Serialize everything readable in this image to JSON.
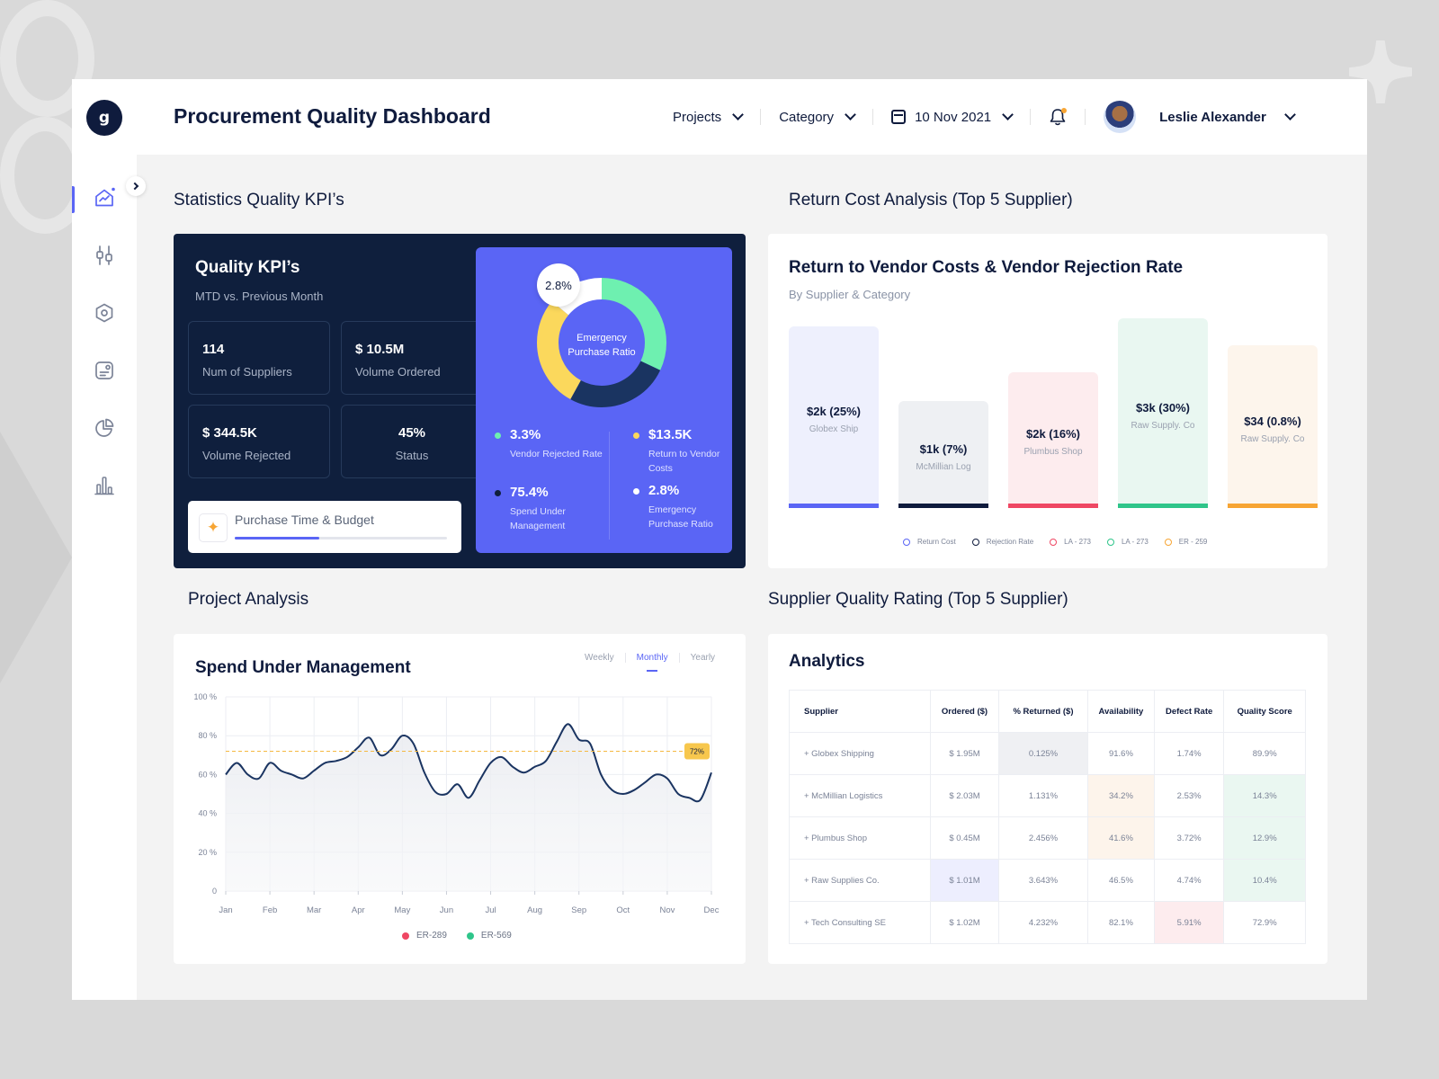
{
  "app": {
    "logo_letter": "g",
    "title": "Procurement Quality Dashboard"
  },
  "header": {
    "projects_label": "Projects",
    "category_label": "Category",
    "date_label": "10 Nov 2021",
    "user_name": "Leslie Alexander"
  },
  "sidebar": {
    "items": [
      {
        "icon": "dashboard-icon",
        "active": true
      },
      {
        "icon": "sliders-icon",
        "active": false
      },
      {
        "icon": "hexagon-settings-icon",
        "active": false
      },
      {
        "icon": "document-icon",
        "active": false
      },
      {
        "icon": "pie-chart-icon",
        "active": false
      },
      {
        "icon": "bar-chart-icon",
        "active": false
      }
    ]
  },
  "sections": {
    "stats_title": "Statistics Quality KPI’s",
    "return_cost_title": "Return Cost Analysis (Top 5 Supplier)",
    "project_title": "Project Analysis",
    "supplier_title": "Supplier Quality Rating (Top 5 Supplier)"
  },
  "kpi": {
    "title": "Quality KPI’s",
    "subtitle": "MTD vs. Previous Month",
    "boxes": [
      {
        "value": "114",
        "label": "Num of Suppliers"
      },
      {
        "value": "$ 10.5M",
        "label": "Volume Ordered"
      },
      {
        "value": "$ 344.5K",
        "label": "Volume Rejected"
      },
      {
        "value": "45%",
        "label": "Status"
      }
    ],
    "purchase_label": "Purchase Time & Budget",
    "purchase_progress": 0.4
  },
  "donut": {
    "badge": "2.8%",
    "center_label": "Emergency Purchase Ratio",
    "segments": [
      {
        "value": 32,
        "color": "#6ef0b0"
      },
      {
        "value": 26,
        "color": "#1a3461"
      },
      {
        "value": 28,
        "color": "#fbd85c"
      },
      {
        "value": 14,
        "color": "#ffffff"
      }
    ],
    "stats": [
      {
        "value": "3.3%",
        "label": "Vendor Rejected Rate",
        "color": "#6ef0b0"
      },
      {
        "value": "$13.5K",
        "label": "Return to Vendor Costs",
        "color": "#fbd85c"
      },
      {
        "value": "75.4%",
        "label": "Spend Under Management",
        "color": "#0f1f3d"
      },
      {
        "value": "2.8%",
        "label": "Emergency Purchase Ratio",
        "color": "#ffffff"
      }
    ]
  },
  "return_cost": {
    "title": "Return to Vendor Costs & Vendor Rejection Rate",
    "subtitle": "By Supplier & Category",
    "legend": [
      {
        "label": "Return Cost",
        "color": "#5a65f5"
      },
      {
        "label": "Rejection Rate",
        "color": "#0f1b3d"
      },
      {
        "label": "LA - 273",
        "color": "#ef4763"
      },
      {
        "label": "LA - 273",
        "color": "#2fc58a"
      },
      {
        "label": "ER - 259",
        "color": "#f7a534"
      }
    ]
  },
  "project": {
    "chart_title": "Spend Under Management",
    "tabs": [
      {
        "label": "Weekly",
        "active": false
      },
      {
        "label": "Monthly",
        "active": true
      },
      {
        "label": "Yearly",
        "active": false
      }
    ],
    "legend": [
      {
        "label": "ER-289",
        "color": "#ef4763"
      },
      {
        "label": "ER-569",
        "color": "#2fc58a"
      }
    ]
  },
  "analytics": {
    "title": "Analytics",
    "columns": [
      "Supplier",
      "Ordered ($)",
      "% Returned ($)",
      "Availability",
      "Defect Rate",
      "Quality Score"
    ],
    "rows": [
      {
        "cells": [
          "+ Globex Shipping",
          "$ 1.95M",
          "0.125%",
          "91.6%",
          "1.74%",
          "89.9%"
        ],
        "hl": [
          "",
          "",
          "c-gray",
          "",
          "",
          ""
        ]
      },
      {
        "cells": [
          "+ McMillian Logistics",
          "$ 2.03M",
          "1.131%",
          "34.2%",
          "2.53%",
          "14.3%"
        ],
        "hl": [
          "",
          "",
          "",
          "c-peach",
          "",
          "c-mint"
        ]
      },
      {
        "cells": [
          "+ Plumbus Shop",
          "$ 0.45M",
          "2.456%",
          "41.6%",
          "3.72%",
          "12.9%"
        ],
        "hl": [
          "",
          "",
          "",
          "c-peach",
          "",
          "c-mint"
        ]
      },
      {
        "cells": [
          "+ Raw Supplies Co.",
          "$ 1.01M",
          "3.643%",
          "46.5%",
          "4.74%",
          "10.4%"
        ],
        "hl": [
          "",
          "c-lav",
          "",
          "",
          "",
          "c-mint"
        ]
      },
      {
        "cells": [
          "+ Tech Consulting SE",
          "$ 1.02M",
          "4.232%",
          "82.1%",
          "5.91%",
          "72.9%"
        ],
        "hl": [
          "",
          "",
          "",
          "",
          "c-pink",
          ""
        ]
      }
    ]
  },
  "chart_data": [
    {
      "type": "bar",
      "title": "Return to Vendor Costs & Vendor Rejection Rate",
      "subtitle": "By Supplier & Category",
      "categories": [
        "Globex Ship",
        "McMillian Log",
        "Plumbus Shop",
        "Raw Supply. Co",
        "Raw Supply. Co"
      ],
      "value_labels": [
        "$2k (25%)",
        "$1k (7%)",
        "$2k (16%)",
        "$3k (30%)",
        "$34 (0.8%)"
      ],
      "values": [
        25,
        7,
        16,
        30,
        0.8
      ],
      "bar_levels": [
        0.75,
        0.44,
        0.56,
        0.78,
        0.67
      ],
      "colors": [
        {
          "fill": "#eef0fd",
          "accent": "#5a65f5"
        },
        {
          "fill": "#eef0f3",
          "accent": "#0f1b3d"
        },
        {
          "fill": "#fdecee",
          "accent": "#ef4763"
        },
        {
          "fill": "#e9f7f1",
          "accent": "#2fc58a"
        },
        {
          "fill": "#fdf5ec",
          "accent": "#f7a534"
        }
      ]
    },
    {
      "type": "line",
      "title": "Spend Under Management",
      "categories": [
        "Jan",
        "Feb",
        "Mar",
        "Apr",
        "May",
        "Jun",
        "Jul",
        "Aug",
        "Sep",
        "Oct",
        "Nov",
        "Dec"
      ],
      "y_ticks": [
        "100 %",
        "80 %",
        "60 %",
        "40 %",
        "20 %",
        "0"
      ],
      "ylim": [
        0,
        100
      ],
      "target": 72,
      "target_label": "72%",
      "series": [
        {
          "color": "#1a3461",
          "x": [
            0,
            0.25,
            0.5,
            0.75,
            1,
            1.25,
            1.5,
            1.75,
            2,
            2.25,
            2.5,
            2.75,
            3,
            3.25,
            3.5,
            3.75,
            4,
            4.25,
            4.5,
            4.75,
            5,
            5.25,
            5.5,
            5.75,
            6,
            6.25,
            6.5,
            6.75,
            7,
            7.25,
            7.5,
            7.75,
            8,
            8.25,
            8.5,
            8.75,
            9,
            9.25,
            9.5,
            9.75,
            10,
            10.25,
            10.5,
            10.75,
            11
          ],
          "values": [
            60,
            66,
            60,
            58,
            66,
            62,
            60,
            58,
            62,
            66,
            67,
            69,
            74,
            79,
            70,
            73,
            80,
            76,
            61,
            51,
            50,
            55,
            48,
            57,
            66,
            69,
            64,
            61,
            64,
            67,
            77,
            86,
            78,
            76,
            60,
            52,
            50,
            52,
            56,
            60,
            58,
            50,
            48,
            47,
            61
          ]
        }
      ]
    }
  ]
}
